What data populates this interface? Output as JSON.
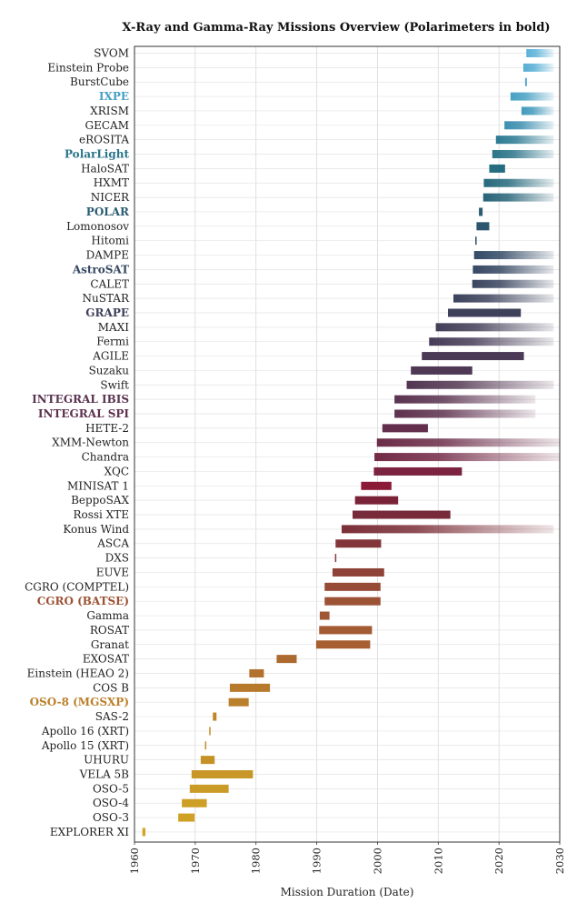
{
  "chart_data": {
    "type": "bar",
    "orientation": "horizontal-range",
    "title": "X-Ray and Gamma-Ray Missions Overview (Polarimeters in bold)",
    "xlabel": "Mission Duration (Date)",
    "ylabel": "",
    "xlim": [
      1960,
      2030
    ],
    "xticks": [
      1960,
      1970,
      1980,
      1990,
      2000,
      2010,
      2020,
      2030
    ],
    "grid": true,
    "legend": "none",
    "ongoing_fade": true,
    "missions": [
      {
        "name": "SVOM",
        "start": 2024.5,
        "end": 2029,
        "polarimeter": false,
        "ongoing": true,
        "color": "#5ab2d8"
      },
      {
        "name": "Einstein Probe",
        "start": 2024,
        "end": 2029,
        "polarimeter": false,
        "ongoing": true,
        "color": "#56aed4"
      },
      {
        "name": "BurstCube",
        "start": 2024.3,
        "end": 2024.6,
        "polarimeter": false,
        "ongoing": false,
        "color": "#52a9cf"
      },
      {
        "name": "IXPE",
        "start": 2021.9,
        "end": 2029,
        "polarimeter": true,
        "ongoing": true,
        "color": "#47a0c3"
      },
      {
        "name": "XRISM",
        "start": 2023.7,
        "end": 2029,
        "polarimeter": false,
        "ongoing": true,
        "color": "#4299bc"
      },
      {
        "name": "GECAM",
        "start": 2020.9,
        "end": 2029,
        "polarimeter": false,
        "ongoing": true,
        "color": "#3b8fb0"
      },
      {
        "name": "eROSITA",
        "start": 2019.5,
        "end": 2029,
        "polarimeter": false,
        "ongoing": true,
        "color": "#2d7a93"
      },
      {
        "name": "PolarLight",
        "start": 2018.9,
        "end": 2029,
        "polarimeter": true,
        "ongoing": true,
        "color": "#2a7489"
      },
      {
        "name": "HaloSAT",
        "start": 2018.4,
        "end": 2021,
        "polarimeter": false,
        "ongoing": false,
        "color": "#266c80"
      },
      {
        "name": "HXMT",
        "start": 2017.5,
        "end": 2029,
        "polarimeter": false,
        "ongoing": true,
        "color": "#25697c"
      },
      {
        "name": "NICER",
        "start": 2017.4,
        "end": 2029,
        "polarimeter": false,
        "ongoing": true,
        "color": "#276478"
      },
      {
        "name": "POLAR",
        "start": 2016.7,
        "end": 2017.3,
        "polarimeter": true,
        "ongoing": false,
        "color": "#2a5c72"
      },
      {
        "name": "Lomonosov",
        "start": 2016.3,
        "end": 2018.4,
        "polarimeter": false,
        "ongoing": false,
        "color": "#2d566e"
      },
      {
        "name": "Hitomi",
        "start": 2016.1,
        "end": 2016.3,
        "polarimeter": false,
        "ongoing": false,
        "color": "#304f6a"
      },
      {
        "name": "DAMPE",
        "start": 2015.9,
        "end": 2029,
        "polarimeter": false,
        "ongoing": true,
        "color": "#334b66"
      },
      {
        "name": "AstroSAT",
        "start": 2015.7,
        "end": 2029,
        "polarimeter": true,
        "ongoing": true,
        "color": "#364863"
      },
      {
        "name": "CALET",
        "start": 2015.6,
        "end": 2029,
        "polarimeter": false,
        "ongoing": true,
        "color": "#39445f"
      },
      {
        "name": "NuSTAR",
        "start": 2012.5,
        "end": 2029,
        "polarimeter": false,
        "ongoing": true,
        "color": "#3c425c"
      },
      {
        "name": "GRAPE",
        "start": 2011.6,
        "end": 2023.6,
        "polarimeter": true,
        "ongoing": false,
        "color": "#3f405a"
      },
      {
        "name": "MAXI",
        "start": 2009.6,
        "end": 2029,
        "polarimeter": false,
        "ongoing": true,
        "color": "#433e58"
      },
      {
        "name": "Fermi",
        "start": 2008.5,
        "end": 2029,
        "polarimeter": false,
        "ongoing": true,
        "color": "#463c57"
      },
      {
        "name": "AGILE",
        "start": 2007.3,
        "end": 2024.1,
        "polarimeter": false,
        "ongoing": false,
        "color": "#4a3a55"
      },
      {
        "name": "Suzaku",
        "start": 2005.5,
        "end": 2015.6,
        "polarimeter": false,
        "ongoing": false,
        "color": "#4e3853"
      },
      {
        "name": "Swift",
        "start": 2004.8,
        "end": 2029,
        "polarimeter": false,
        "ongoing": true,
        "color": "#523651"
      },
      {
        "name": "INTEGRAL IBIS",
        "start": 2002.8,
        "end": 2026,
        "polarimeter": true,
        "ongoing": true,
        "color": "#5a3350"
      },
      {
        "name": "INTEGRAL SPI",
        "start": 2002.8,
        "end": 2026,
        "polarimeter": true,
        "ongoing": true,
        "color": "#5e314e"
      },
      {
        "name": "HETE-2",
        "start": 2000.8,
        "end": 2008.3,
        "polarimeter": false,
        "ongoing": false,
        "color": "#632f4c"
      },
      {
        "name": "XMM-Newton",
        "start": 1999.9,
        "end": 2030,
        "polarimeter": false,
        "ongoing": true,
        "color": "#6b2c48"
      },
      {
        "name": "Chandra",
        "start": 1999.5,
        "end": 2030,
        "polarimeter": false,
        "ongoing": true,
        "color": "#732a45"
      },
      {
        "name": "XQC",
        "start": 1999.4,
        "end": 2013.9,
        "polarimeter": false,
        "ongoing": false,
        "color": "#7b2340"
      },
      {
        "name": "MINISAT 1",
        "start": 1997.3,
        "end": 2002.3,
        "polarimeter": false,
        "ongoing": false,
        "color": "#8a1a36"
      },
      {
        "name": "BeppoSAX",
        "start": 1996.3,
        "end": 2003.4,
        "polarimeter": false,
        "ongoing": false,
        "color": "#7a2338"
      },
      {
        "name": "Rossi XTE",
        "start": 1995.9,
        "end": 2012,
        "polarimeter": false,
        "ongoing": false,
        "color": "#762a3a"
      },
      {
        "name": "Konus Wind",
        "start": 1994.1,
        "end": 2029,
        "polarimeter": false,
        "ongoing": true,
        "color": "#7b2f38"
      },
      {
        "name": "ASCA",
        "start": 1993.1,
        "end": 2000.6,
        "polarimeter": false,
        "ongoing": false,
        "color": "#83363a"
      },
      {
        "name": "DXS",
        "start": 1993.0,
        "end": 1993.1,
        "polarimeter": false,
        "ongoing": false,
        "color": "#8a3d38"
      },
      {
        "name": "EUVE",
        "start": 1992.6,
        "end": 2001.1,
        "polarimeter": false,
        "ongoing": false,
        "color": "#8f4338"
      },
      {
        "name": "CGRO (COMPTEL)",
        "start": 1991.3,
        "end": 2000.5,
        "polarimeter": false,
        "ongoing": false,
        "color": "#964b37"
      },
      {
        "name": "CGRO (BATSE)",
        "start": 1991.3,
        "end": 2000.5,
        "polarimeter": true,
        "ongoing": false,
        "color": "#9c5235"
      },
      {
        "name": "Gamma",
        "start": 1990.5,
        "end": 1992.1,
        "polarimeter": false,
        "ongoing": false,
        "color": "#a05734"
      },
      {
        "name": "ROSAT",
        "start": 1990.4,
        "end": 1999.1,
        "polarimeter": false,
        "ongoing": false,
        "color": "#a35b33"
      },
      {
        "name": "Granat",
        "start": 1989.9,
        "end": 1998.8,
        "polarimeter": false,
        "ongoing": false,
        "color": "#a75f32"
      },
      {
        "name": "EXOSAT",
        "start": 1983.4,
        "end": 1986.7,
        "polarimeter": false,
        "ongoing": false,
        "color": "#ad6a30"
      },
      {
        "name": "Einstein (HEAO 2)",
        "start": 1978.9,
        "end": 1981.3,
        "polarimeter": false,
        "ongoing": false,
        "color": "#b2712e"
      },
      {
        "name": "COS B",
        "start": 1975.7,
        "end": 1982.3,
        "polarimeter": false,
        "ongoing": false,
        "color": "#b7792c"
      },
      {
        "name": "OSO-8 (MGSXP)",
        "start": 1975.5,
        "end": 1978.8,
        "polarimeter": true,
        "ongoing": false,
        "color": "#bb802b"
      },
      {
        "name": "SAS-2",
        "start": 1972.9,
        "end": 1973.5,
        "polarimeter": false,
        "ongoing": false,
        "color": "#be852a"
      },
      {
        "name": "Apollo 16 (XRT)",
        "start": 1972.3,
        "end": 1972.4,
        "polarimeter": false,
        "ongoing": false,
        "color": "#c08a29"
      },
      {
        "name": "Apollo 15 (XRT)",
        "start": 1971.6,
        "end": 1971.7,
        "polarimeter": false,
        "ongoing": false,
        "color": "#c38e28"
      },
      {
        "name": "UHURU",
        "start": 1970.9,
        "end": 1973.2,
        "polarimeter": false,
        "ongoing": false,
        "color": "#c59228"
      },
      {
        "name": "VELA 5B",
        "start": 1969.4,
        "end": 1979.5,
        "polarimeter": false,
        "ongoing": false,
        "color": "#c89727"
      },
      {
        "name": "OSO-5",
        "start": 1969.1,
        "end": 1975.5,
        "polarimeter": false,
        "ongoing": false,
        "color": "#cb9b27"
      },
      {
        "name": "OSO-4",
        "start": 1967.8,
        "end": 1971.9,
        "polarimeter": false,
        "ongoing": false,
        "color": "#cd9f26"
      },
      {
        "name": "OSO-3",
        "start": 1967.2,
        "end": 1969.9,
        "polarimeter": false,
        "ongoing": false,
        "color": "#cfa226"
      },
      {
        "name": "EXPLORER XI",
        "start": 1961.3,
        "end": 1961.8,
        "polarimeter": false,
        "ongoing": false,
        "color": "#d1a625"
      }
    ]
  }
}
